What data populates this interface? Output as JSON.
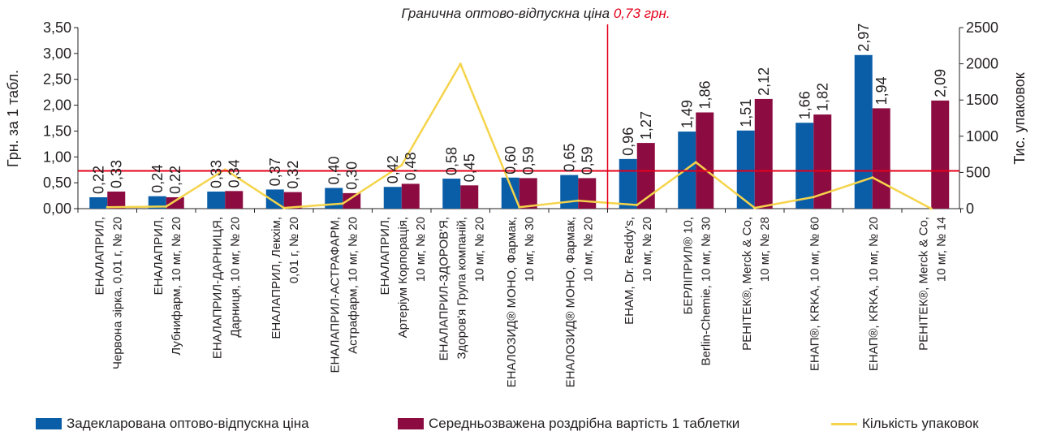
{
  "chart_data": {
    "type": "bar",
    "annotation": {
      "text": "Гранична оптово-відпускна ціна",
      "value_text": "0,73 грн.",
      "value": 0.73
    },
    "ylabel_left": "Грн. за 1 табл.",
    "ylabel_right": "Тис. упаковок",
    "ylim_left": [
      0,
      3.5
    ],
    "ylim_right": [
      0,
      2500
    ],
    "yticks_left": [
      "0,00",
      "0,50",
      "1,00",
      "1,50",
      "2,00",
      "2,50",
      "3,00",
      "3,50"
    ],
    "yticks_right": [
      "0",
      "500",
      "1000",
      "1500",
      "2000",
      "2500"
    ],
    "categories": [
      [
        "ЕНАЛАПРИЛ,",
        "Червона зірка, 0,01 г, № 20"
      ],
      [
        "ЕНАЛАПРИЛ,",
        "Лубнифарм, 10 мг, № 20"
      ],
      [
        "ЕНАЛАПРИЛ-ДАРНИЦЯ,",
        "Дарниця, 10 мг, № 20"
      ],
      [
        "ЕНАЛАПРИЛ, Лекхім,",
        "0,01 г, № 20"
      ],
      [
        "ЕНАЛАПРИЛ-АСТРАФАРМ,",
        "Астрафарм, 10 мг, № 20"
      ],
      [
        "ЕНАЛАПРИЛ,",
        "Артеріум Корпорація,",
        "10 мг, № 20"
      ],
      [
        "ЕНАЛАПРИЛ-ЗДОРОВ'Я,",
        "Здоров'я Група компаній,",
        "10 мг, № 20"
      ],
      [
        "ЕНАЛОЗИД® МОНО, Фармак,",
        "10 мг, № 30"
      ],
      [
        "ЕНАЛОЗИД® МОНО, Фармак,",
        "10 мг, № 20"
      ],
      [
        "ЕНАМ, Dr. Reddy's,",
        "10 мг, № 20"
      ],
      [
        "БЕРЛІПРИЛ® 10,",
        "Berlin-Chemie, 10 мг, № 30"
      ],
      [
        "РЕНІТЕК®, Merck & Co,",
        "10 мг, № 28"
      ],
      [
        "ЕНАП®, KRKA, 10 мг, № 60"
      ],
      [
        "ЕНАП®, KRKA, 10 мг, № 20"
      ],
      [
        "РЕНІТЕК®, Merck & Co,",
        "10 мг, № 14"
      ]
    ],
    "series": [
      {
        "name": "Задекларована оптово-відпускна ціна",
        "color": "#0a5ea8",
        "axis": "left",
        "values": [
          0.22,
          0.24,
          0.33,
          0.37,
          0.4,
          0.42,
          0.58,
          0.6,
          0.65,
          0.96,
          1.49,
          1.51,
          1.66,
          2.97,
          null
        ],
        "labels": [
          "0,22",
          "0,24",
          "0,33",
          "0,37",
          "0,40",
          "0,42",
          "0,58",
          "0,60",
          "0,65",
          "0,96",
          "1,49",
          "1,51",
          "1,66",
          "2,97",
          ""
        ]
      },
      {
        "name": "Середньозважена роздрібна вартість 1 таблетки",
        "color": "#8c0c42",
        "axis": "left",
        "values": [
          0.33,
          0.22,
          0.34,
          0.32,
          0.3,
          0.48,
          0.45,
          0.59,
          0.59,
          1.27,
          1.86,
          2.12,
          1.82,
          1.94,
          2.09
        ],
        "labels": [
          "0,33",
          "0,22",
          "0,34",
          "0,32",
          "0,30",
          "0,48",
          "0,45",
          "0,59",
          "0,59",
          "1,27",
          "1,86",
          "2,12",
          "1,82",
          "1,94",
          "2,09"
        ]
      },
      {
        "name": "Кількість упаковок",
        "color": "#f5d44b",
        "axis": "right",
        "kind": "line",
        "values": [
          20,
          30,
          540,
          10,
          70,
          600,
          2000,
          20,
          110,
          50,
          640,
          10,
          160,
          430,
          0
        ]
      }
    ],
    "colors": {
      "reference_line": "#e3001b",
      "annotation_value": "#e3001b",
      "axis": "#231f20"
    }
  }
}
